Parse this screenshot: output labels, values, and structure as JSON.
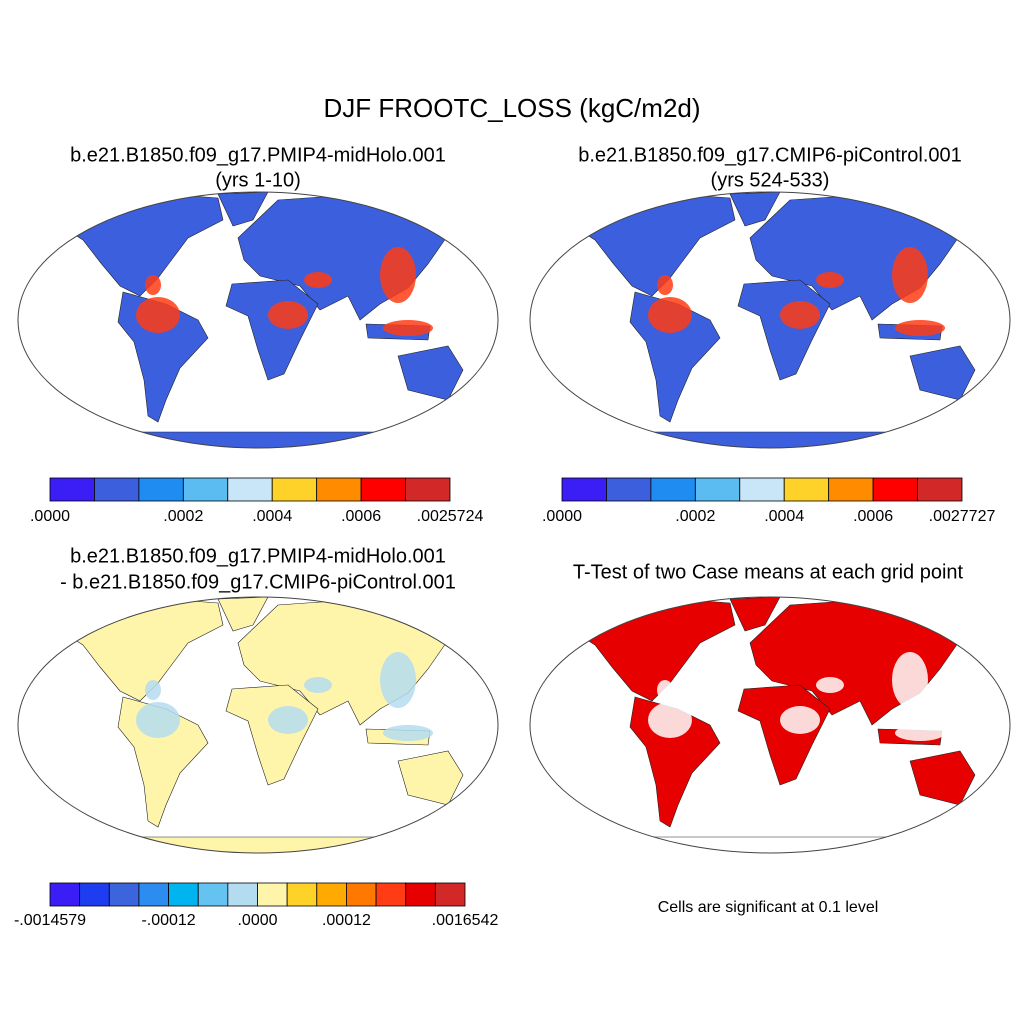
{
  "title": "DJF FROOTC_LOSS (kgC/m2d)",
  "panels": [
    {
      "title_lines": [
        "b.e21.B1850.f09_g17.PMIP4-midHolo.001",
        "(yrs 1-10)"
      ],
      "colorbar": {
        "colors": [
          "#3a1ef5",
          "#3c5fde",
          "#1e8cf0",
          "#5abcf0",
          "#c8e6f8",
          "#ffd22a",
          "#ff8c00",
          "#ff0000",
          "#d22828"
        ],
        "labels": [
          ".0000",
          null,
          null,
          ".0002",
          null,
          ".0004",
          null,
          ".0006",
          null,
          ".0025724"
        ]
      }
    },
    {
      "title_lines": [
        "b.e21.B1850.f09_g17.CMIP6-piControl.001",
        "(yrs 524-533)"
      ],
      "colorbar": {
        "colors": [
          "#3a1ef5",
          "#3c5fde",
          "#1e8cf0",
          "#5abcf0",
          "#c8e6f8",
          "#ffd22a",
          "#ff8c00",
          "#ff0000",
          "#d22828"
        ],
        "labels": [
          ".0000",
          null,
          null,
          ".0002",
          null,
          ".0004",
          null,
          ".0006",
          null,
          ".0027727"
        ]
      }
    },
    {
      "title_lines": [
        "b.e21.B1850.f09_g17.PMIP4-midHolo.001",
        "- b.e21.B1850.f09_g17.CMIP6-piControl.001"
      ],
      "colorbar": {
        "colors": [
          "#3a1ef5",
          "#1e3cf0",
          "#3c64dc",
          "#2d8cf0",
          "#00b4f0",
          "#64c3f0",
          "#b4dcf0",
          "#fff5aa",
          "#ffd22a",
          "#ffaa00",
          "#ff7800",
          "#ff3c14",
          "#e60000",
          "#d22828"
        ],
        "labels": [
          "-.0014579",
          null,
          null,
          null,
          "-.00012",
          null,
          null,
          ".0000",
          null,
          null,
          ".00012",
          null,
          null,
          null,
          ".0016542"
        ]
      }
    },
    {
      "title_lines": [
        "T-Test of two Case means at each grid point"
      ],
      "note": "Cells are significant at 0.1 level"
    }
  ]
}
